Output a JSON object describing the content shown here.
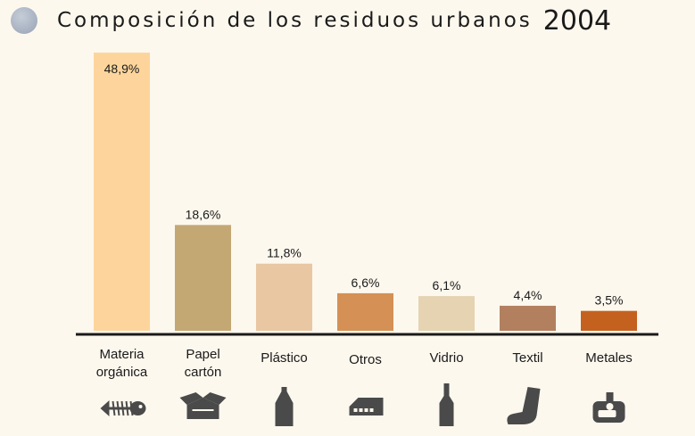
{
  "title": {
    "text": "Composición de los residuos urbanos",
    "year": "2004"
  },
  "chart_data": {
    "type": "bar",
    "title": "Composición de los residuos urbanos 2004",
    "categories": [
      {
        "lines": [
          "Materia",
          "orgánica"
        ],
        "label": "48,9%",
        "value": 48.9,
        "color": "#fdd59c",
        "icon": "fish-bone-icon"
      },
      {
        "lines": [
          "Papel",
          "cartón"
        ],
        "label": "18,6%",
        "value": 18.6,
        "color": "#c4a874",
        "icon": "cardboard-box-icon"
      },
      {
        "lines": [
          "Plástico"
        ],
        "label": "11,8%",
        "value": 11.8,
        "color": "#e9c7a3",
        "icon": "plastic-bottle-icon"
      },
      {
        "lines": [
          "Otros"
        ],
        "label": "6,6%",
        "value": 6.6,
        "color": "#d49055",
        "icon": "misc-object-icon"
      },
      {
        "lines": [
          "Vidrio"
        ],
        "label": "6,1%",
        "value": 6.1,
        "color": "#e5d3b2",
        "icon": "glass-bottle-icon"
      },
      {
        "lines": [
          "Textil"
        ],
        "label": "4,4%",
        "value": 4.4,
        "color": "#b2805f",
        "icon": "sock-icon"
      },
      {
        "lines": [
          "Metales"
        ],
        "label": "3,5%",
        "value": 3.5,
        "color": "#c5611f",
        "icon": "metal-can-icon"
      }
    ],
    "unit": "%",
    "grid": false
  }
}
